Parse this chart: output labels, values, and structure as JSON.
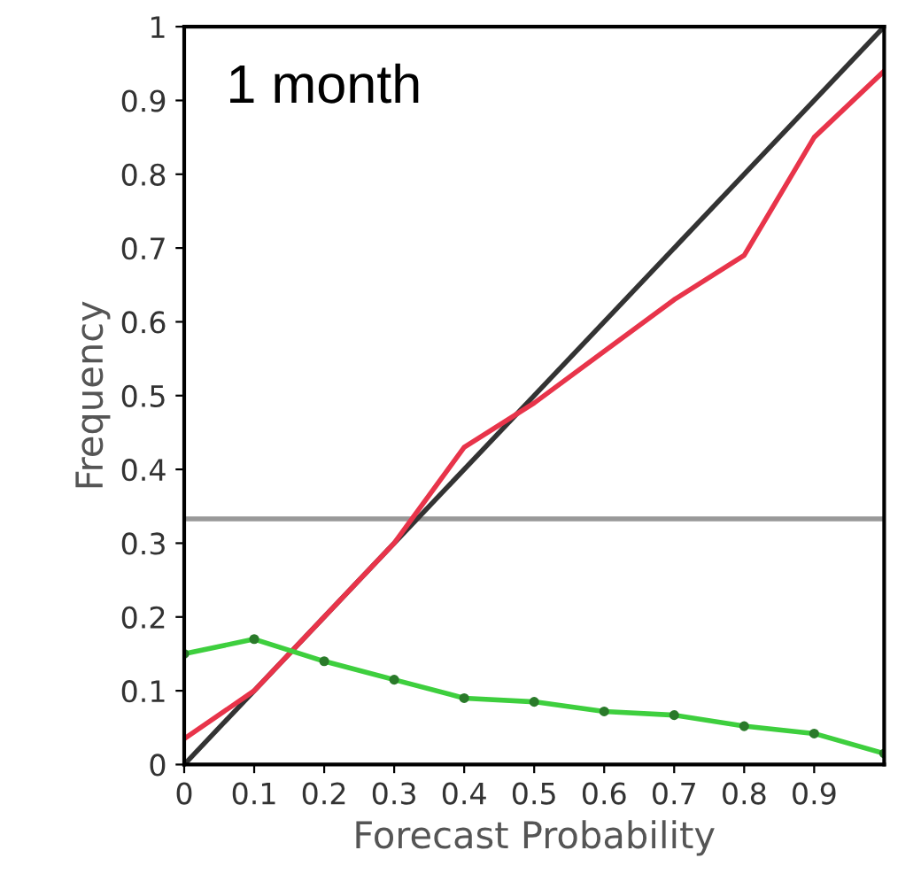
{
  "chart_data": {
    "type": "line",
    "xlabel": "Forecast Probability",
    "ylabel": "Frequency",
    "annotations": [
      "1 month"
    ],
    "xlim": [
      0,
      1
    ],
    "ylim": [
      0,
      1
    ],
    "xticks": [
      0,
      0.1,
      0.2,
      0.3,
      0.4,
      0.5,
      0.6,
      0.7,
      0.8,
      0.9
    ],
    "yticks": [
      0,
      0.1,
      0.2,
      0.3,
      0.4,
      0.5,
      0.6,
      0.7,
      0.8,
      0.9,
      1
    ],
    "grid": false,
    "legend": false,
    "series": [
      {
        "color": "#333333",
        "x": [
          0,
          1
        ],
        "values": [
          0,
          1
        ],
        "marker": "none"
      },
      {
        "color": "#e8344a",
        "x": [
          0,
          0.1,
          0.2,
          0.3,
          0.4,
          0.5,
          0.6,
          0.7,
          0.8,
          0.9,
          1
        ],
        "values": [
          0.035,
          0.1,
          0.2,
          0.3,
          0.43,
          0.49,
          0.56,
          0.63,
          0.69,
          0.85,
          0.94
        ],
        "marker": "none"
      },
      {
        "color": "#3ecf3e",
        "x": [
          0,
          0.1,
          0.2,
          0.3,
          0.4,
          0.5,
          0.6,
          0.7,
          0.8,
          0.9,
          1
        ],
        "values": [
          0.15,
          0.17,
          0.14,
          0.115,
          0.09,
          0.085,
          0.072,
          0.067,
          0.052,
          0.042,
          0.015
        ],
        "marker": "circle"
      }
    ],
    "ref_lines": [
      {
        "axis": "y",
        "value": 0.333,
        "color": "#999999"
      }
    ]
  }
}
